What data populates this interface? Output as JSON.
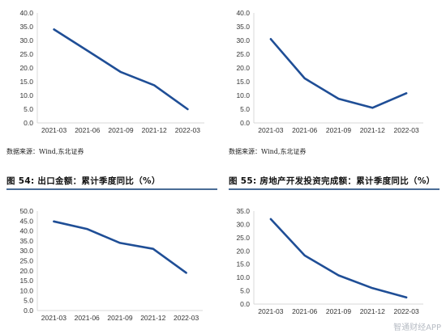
{
  "source_text": "数据来源：Wind,东北证券",
  "figure_titles": {
    "fig54": "图 54: 出口金额：累计季度同比（%）",
    "fig55": "图 55: 房地产开发投资完成额：累计季度同比（%）"
  },
  "watermark": "智通财经APP",
  "colors": {
    "line": "#1f4e96",
    "axis": "#d9d9d9",
    "title_rule": "#4a6c96"
  },
  "chart_data": [
    {
      "type": "line",
      "title": "",
      "categories": [
        "2021-03",
        "2021-06",
        "2021-09",
        "2021-12",
        "2022-03"
      ],
      "series": [
        {
          "values": [
            34.0,
            26.3,
            18.5,
            13.7,
            5.0
          ]
        }
      ],
      "ylim": [
        0,
        40
      ],
      "yticks": [
        "0.0",
        "5.0",
        "10.0",
        "15.0",
        "20.0",
        "25.0",
        "30.0",
        "35.0",
        "40.0"
      ],
      "grid": false
    },
    {
      "type": "line",
      "title": "",
      "categories": [
        "2021-03",
        "2021-06",
        "2021-09",
        "2021-12",
        "2022-03"
      ],
      "series": [
        {
          "values": [
            30.5,
            16.2,
            8.8,
            5.5,
            10.8
          ]
        }
      ],
      "ylim": [
        0,
        40
      ],
      "yticks": [
        "0.0",
        "5.0",
        "10.0",
        "15.0",
        "20.0",
        "25.0",
        "30.0",
        "35.0",
        "40.0"
      ],
      "grid": false
    },
    {
      "type": "line",
      "title": "",
      "categories": [
        "2021-03",
        "2021-06",
        "2021-09",
        "2021-12",
        "2022-03"
      ],
      "series": [
        {
          "values": [
            44.8,
            41.0,
            34.0,
            31.0,
            19.0
          ]
        }
      ],
      "ylim": [
        0,
        50
      ],
      "yticks": [
        "0.0",
        "5.0",
        "10.0",
        "15.0",
        "20.0",
        "25.0",
        "30.0",
        "35.0",
        "40.0",
        "45.0",
        "50.0"
      ],
      "grid": false
    },
    {
      "type": "line",
      "title": "",
      "categories": [
        "2021-03",
        "2021-06",
        "2021-09",
        "2021-12",
        "2022-03"
      ],
      "series": [
        {
          "values": [
            32.0,
            18.3,
            10.8,
            6.0,
            2.5
          ]
        }
      ],
      "ylim": [
        0,
        35
      ],
      "yticks": [
        "0.0",
        "5.0",
        "10.0",
        "15.0",
        "20.0",
        "25.0",
        "30.0",
        "35.0"
      ],
      "grid": false
    }
  ]
}
